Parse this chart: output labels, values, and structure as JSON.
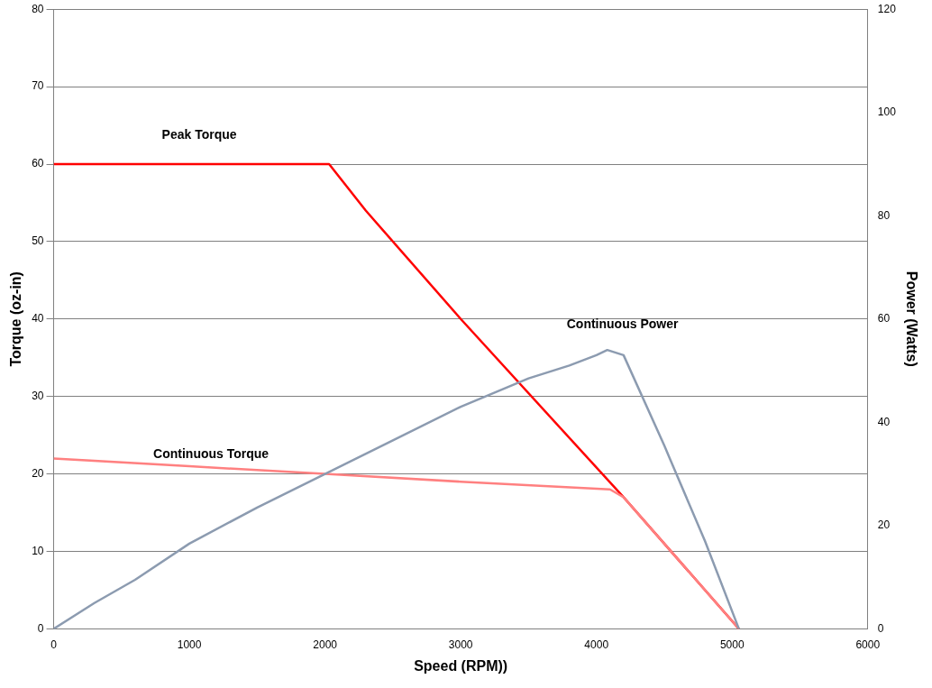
{
  "chart_data": {
    "type": "line",
    "xlabel": "Speed (RPM))",
    "ylabel": "Torque (oz-in)",
    "y2label": "Power (Watts)",
    "xlim": [
      0,
      6000
    ],
    "xticks": [
      0,
      1000,
      2000,
      3000,
      4000,
      5000,
      6000
    ],
    "ylim": [
      0,
      80
    ],
    "yticks": [
      0,
      10,
      20,
      30,
      40,
      50,
      60,
      70,
      80
    ],
    "y2lim": [
      0,
      120
    ],
    "y2ticks": [
      0,
      20,
      40,
      60,
      80,
      100,
      120
    ],
    "grid": "y",
    "legend": false,
    "marker": "none",
    "line_style": "solid",
    "series": [
      {
        "name": "Continuous Power",
        "color": "#8c9bb0",
        "axis": "y2",
        "x": [
          0,
          300,
          600,
          1000,
          1500,
          2000,
          2500,
          3000,
          3500,
          3800,
          4000,
          4080,
          4200,
          4500,
          4800,
          5050
        ],
        "values": [
          0,
          5,
          9.5,
          16.5,
          23.5,
          30,
          36.5,
          43,
          48.5,
          51,
          53,
          54,
          53,
          35.5,
          17,
          0
        ]
      },
      {
        "name": "Continuous Torque",
        "color": "#ff8080",
        "axis": "y",
        "x": [
          0,
          1000,
          2000,
          3000,
          4100,
          4200,
          5050
        ],
        "values": [
          22,
          21,
          20,
          19,
          18,
          17,
          0
        ]
      },
      {
        "name": "Peak Torque",
        "color": "#ff0000",
        "axis": "y",
        "x": [
          0,
          2030,
          2300,
          3000,
          4200,
          5050
        ],
        "values": [
          60,
          60,
          54,
          40,
          17,
          0
        ]
      }
    ]
  }
}
